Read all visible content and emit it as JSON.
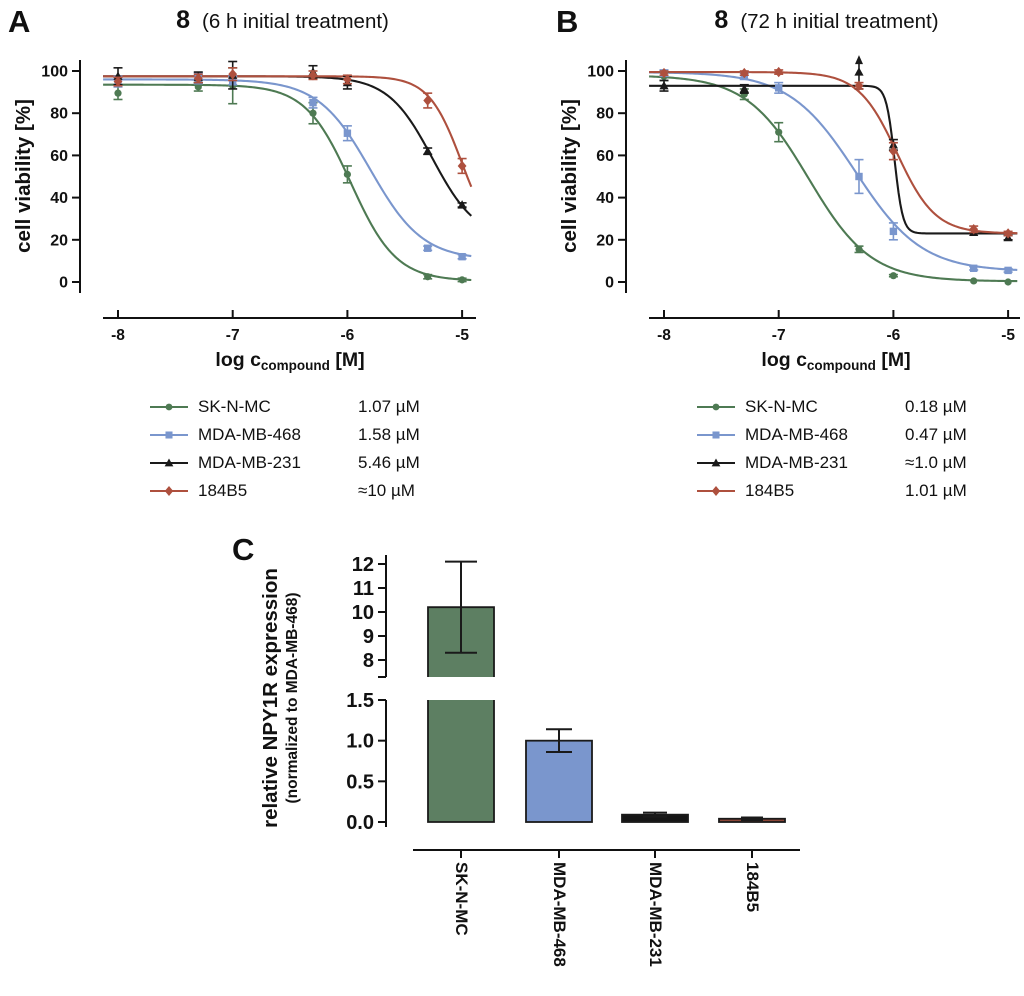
{
  "panels": {
    "a_label": "A",
    "b_label": "B",
    "c_label": "C"
  },
  "chart_data": [
    {
      "id": "A",
      "type": "line",
      "title_number": "8",
      "title_text": "(6 h initial treatment)",
      "xlabel_main": "log c",
      "xlabel_sub": "compound",
      "xlabel_unit": " [M]",
      "ylabel": "cell viability [%]",
      "x_ticks": [
        -8,
        -7,
        -6,
        -5
      ],
      "y_ticks": [
        0,
        20,
        40,
        60,
        80,
        100
      ],
      "xlim": [
        -8.13,
        -4.92
      ],
      "ylim": [
        0,
        100
      ],
      "series": [
        {
          "name": "SK-N-MC",
          "ic50": "1.07 µM",
          "color": "#4e7a53",
          "marker": "circle",
          "fit": {
            "top": 93.5,
            "bottom": 0.5,
            "logec50": -5.97,
            "hill": 2.2
          },
          "points": [
            {
              "x": -8,
              "y": 89.5,
              "err": 3
            },
            {
              "x": -7.3,
              "y": 92.5,
              "err": 2
            },
            {
              "x": -7,
              "y": 93,
              "err": 8.5
            },
            {
              "x": -6.3,
              "y": 80,
              "err": 5
            },
            {
              "x": -6,
              "y": 51,
              "err": 4
            },
            {
              "x": -5.3,
              "y": 2.5,
              "err": 1
            },
            {
              "x": -5,
              "y": 1,
              "err": 0.8
            }
          ]
        },
        {
          "name": "MDA-MB-468",
          "ic50": "1.58 µM",
          "color": "#7a96cd",
          "marker": "square",
          "fit": {
            "top": 96,
            "bottom": 10.5,
            "logec50": -5.8,
            "hill": 1.9
          },
          "points": [
            {
              "x": -8,
              "y": 95,
              "err": 2.5
            },
            {
              "x": -7.3,
              "y": 96.5,
              "err": 2.5
            },
            {
              "x": -7,
              "y": 95.5,
              "err": 2
            },
            {
              "x": -6.3,
              "y": 85,
              "err": 2.5
            },
            {
              "x": -6,
              "y": 70.5,
              "err": 3.5
            },
            {
              "x": -5.3,
              "y": 16,
              "err": 1
            },
            {
              "x": -5,
              "y": 12,
              "err": 1
            }
          ]
        },
        {
          "name": "MDA-MB-231",
          "ic50": "5.46 µM",
          "color": "#1a1a1a",
          "marker": "triangle",
          "fit": {
            "top": 97.5,
            "bottom": 20,
            "logec50": -5.26,
            "hill": 2.25
          },
          "points": [
            {
              "x": -8,
              "y": 97.5,
              "err": 4
            },
            {
              "x": -7.3,
              "y": 97,
              "err": 2.5
            },
            {
              "x": -7,
              "y": 98,
              "err": 6.5
            },
            {
              "x": -6.3,
              "y": 99.5,
              "err": 3
            },
            {
              "x": -6,
              "y": 94.5,
              "err": 3
            },
            {
              "x": -5.3,
              "y": 62,
              "err": 1.5
            },
            {
              "x": -5,
              "y": 36.5,
              "err": 1
            }
          ]
        },
        {
          "name": "184B5",
          "ic50": "≈10 µM",
          "color": "#ae503e",
          "marker": "diamond",
          "fit": {
            "top": 97.5,
            "bottom": 15,
            "logec50": -5.0,
            "hill": 3
          },
          "points": [
            {
              "x": -8,
              "y": 95,
              "err": 2
            },
            {
              "x": -7.3,
              "y": 96.5,
              "err": 2
            },
            {
              "x": -7,
              "y": 98.5,
              "err": 3
            },
            {
              "x": -6.3,
              "y": 98,
              "err": 2
            },
            {
              "x": -6,
              "y": 96,
              "err": 2
            },
            {
              "x": -5.3,
              "y": 86,
              "err": 3.5
            },
            {
              "x": -5,
              "y": 55,
              "err": 3.5
            }
          ]
        }
      ]
    },
    {
      "id": "B",
      "type": "line",
      "title_number": "8",
      "title_text": "(72 h initial treatment)",
      "xlabel_main": "log c",
      "xlabel_sub": "compound",
      "xlabel_unit": " [M]",
      "ylabel": "cell viability [%]",
      "x_ticks": [
        -8,
        -7,
        -6,
        -5
      ],
      "y_ticks": [
        0,
        20,
        40,
        60,
        80,
        100
      ],
      "xlim": [
        -8.13,
        -4.92
      ],
      "ylim": [
        0,
        100
      ],
      "series": [
        {
          "name": "SK-N-MC",
          "ic50": "0.18 µM",
          "color": "#4e7a53",
          "marker": "circle",
          "fit": {
            "top": 98,
            "bottom": 0.3,
            "logec50": -6.74,
            "hill": 1.6
          },
          "points": [
            {
              "x": -8,
              "y": 97.5,
              "err": 2
            },
            {
              "x": -7.3,
              "y": 89,
              "err": 2.5
            },
            {
              "x": -7,
              "y": 71,
              "err": 4.5
            },
            {
              "x": -6.3,
              "y": 15.5,
              "err": 1.5
            },
            {
              "x": -6,
              "y": 3,
              "err": 0.5
            },
            {
              "x": -5.3,
              "y": 0.5,
              "err": 0
            },
            {
              "x": -5,
              "y": 0,
              "err": 0
            }
          ]
        },
        {
          "name": "MDA-MB-468",
          "ic50": "0.47 µM",
          "color": "#7a96cd",
          "marker": "square",
          "fit": {
            "top": 99.5,
            "bottom": 5,
            "logec50": -6.33,
            "hill": 1.5
          },
          "points": [
            {
              "x": -8,
              "y": 99,
              "err": 1.5
            },
            {
              "x": -7.3,
              "y": 97.5,
              "err": 1.5
            },
            {
              "x": -7,
              "y": 92,
              "err": 2.5
            },
            {
              "x": -6.3,
              "y": 50,
              "err": 8
            },
            {
              "x": -6,
              "y": 24,
              "err": 4
            },
            {
              "x": -5.3,
              "y": 6.5,
              "err": 0.8
            },
            {
              "x": -5,
              "y": 5.5,
              "err": 0.8
            }
          ]
        },
        {
          "name": "MDA-MB-231",
          "ic50": "≈1.0 µM",
          "color": "#1a1a1a",
          "marker": "triangle",
          "fit": {
            "top": 93,
            "bottom": 23,
            "logec50": -5.99,
            "hill": 12
          },
          "points": [
            {
              "x": -8,
              "y": 93,
              "err": 2.5
            },
            {
              "x": -7.3,
              "y": 91.5,
              "err": 2
            },
            {
              "x": -6.3,
              "y": 99.5,
              "err": 8,
              "arrow_up": true
            },
            {
              "x": -6,
              "y": 65,
              "err": 2.5
            },
            {
              "x": -5.3,
              "y": 23.5,
              "err": 0
            },
            {
              "x": -5,
              "y": 21,
              "err": 1
            }
          ]
        },
        {
          "name": "184B5",
          "ic50": "1.01 µM",
          "color": "#ae503e",
          "marker": "diamond",
          "fit": {
            "top": 99.5,
            "bottom": 23,
            "logec50": -5.97,
            "hill": 2.6
          },
          "points": [
            {
              "x": -8,
              "y": 99,
              "err": 1
            },
            {
              "x": -7.3,
              "y": 99,
              "err": 1
            },
            {
              "x": -7,
              "y": 99.5,
              "err": 1
            },
            {
              "x": -6.3,
              "y": 93,
              "err": 1.5
            },
            {
              "x": -6,
              "y": 62,
              "err": 4
            },
            {
              "x": -5.3,
              "y": 25,
              "err": 1.5
            },
            {
              "x": -5,
              "y": 23,
              "err": 1
            }
          ]
        }
      ]
    },
    {
      "id": "C",
      "type": "bar",
      "ylabel_line1": "relative NPY1R expression",
      "ylabel_line2": "(normalized to MDA-MB-468)",
      "categories": [
        "SK-N-MC",
        "MDA-MB-468",
        "MDA-MB-231",
        "184B5"
      ],
      "values": [
        10.2,
        1.0,
        0.09,
        0.04
      ],
      "errors": [
        1.9,
        0.14,
        0.025,
        0.015
      ],
      "bar_colors": [
        "#5d7f62",
        "#7a96cd",
        "#151515",
        "#8a4536"
      ],
      "bar_edge": "#1a1a1a",
      "error_color": "#1a1a1a",
      "axis_break": true,
      "upper_ticks": [
        "8",
        "9",
        "10",
        "11",
        "12"
      ],
      "upper_tick_values": [
        8,
        9,
        10,
        11,
        12
      ],
      "lower_ticks": [
        "0.0",
        "0.5",
        "1.0",
        "1.5"
      ],
      "lower_tick_values": [
        0,
        0.5,
        1.0,
        1.5
      ],
      "upper_range": [
        7.5,
        12.3
      ],
      "lower_range": [
        0,
        1.5
      ]
    }
  ]
}
